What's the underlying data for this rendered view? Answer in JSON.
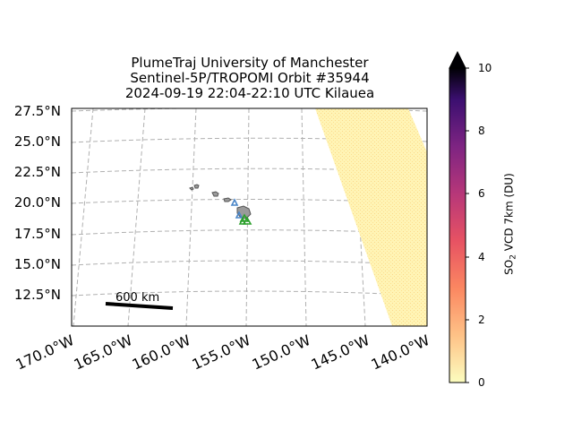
{
  "title": {
    "line1": "PlumeTraj    University of Manchester",
    "line2": "Sentinel-5P/TROPOMI Orbit #35944",
    "line3": "2024-09-19   22:04-22:10 UTC   Kilauea"
  },
  "map": {
    "lat_ticks": [
      "27.5°N",
      "25.0°N",
      "22.5°N",
      "20.0°N",
      "17.5°N",
      "15.0°N",
      "12.5°N"
    ],
    "lon_ticks": [
      "170.0°W",
      "165.0°W",
      "160.0°W",
      "155.0°W",
      "150.0°W",
      "145.0°W",
      "140.0°W"
    ],
    "scale_bar_label": "600 km",
    "gridlines": true
  },
  "colorbar": {
    "label_main": "SO",
    "label_sub": "2",
    "label_rest": " VCD 7km (DU)",
    "ticks": [
      "0",
      "2",
      "4",
      "6",
      "8",
      "10"
    ],
    "min": 0,
    "max": 10,
    "colormap": "magma_r",
    "extend": "max"
  },
  "colors": {
    "plume": "#fff3b0",
    "grid": "#b0b0b0",
    "volcano_blue": "#4a86c8",
    "volcano_green": "#2ca02c"
  }
}
